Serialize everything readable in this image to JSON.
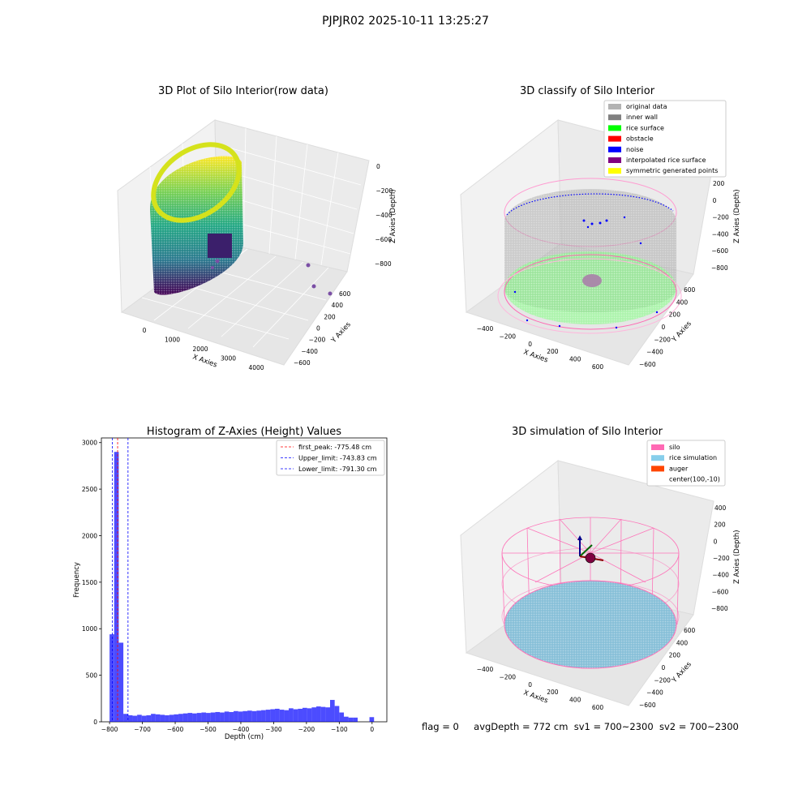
{
  "suptitle": "PJPJR02 2025-10-11 13:25:27",
  "footer": {
    "flag": "flag = 0",
    "avgDepth": "avgDepth = 772 cm",
    "sv1": "sv1 = 700~2300",
    "sv2": "sv2 = 700~2300"
  },
  "panel_raw": {
    "title": "3D Plot of Silo Interior(row data)",
    "xlabel": "X Axies",
    "ylabel": "Y Axies",
    "zlabel": "Z Axies (Depth)",
    "xticks": [
      "0",
      "1000",
      "2000",
      "3000",
      "4000"
    ],
    "yticks": [
      "600",
      "400",
      "200",
      "0",
      "−200",
      "−400",
      "−600"
    ],
    "zticks": [
      "0",
      "−200",
      "−400",
      "−600",
      "−800"
    ]
  },
  "panel_classify": {
    "title": "3D classify of Silo Interior",
    "xlabel": "X Axies",
    "ylabel": "Y Axies",
    "zlabel": "Z Axies (Depth)",
    "xticks": [
      "−400",
      "−200",
      "0",
      "200",
      "400",
      "600"
    ],
    "yticks": [
      "600",
      "400",
      "200",
      "0",
      "−200",
      "−400",
      "−600"
    ],
    "zticks": [
      "200",
      "0",
      "−200",
      "−400",
      "−600",
      "−800"
    ],
    "legend": [
      {
        "label": "original data",
        "color": "#b3b3b3"
      },
      {
        "label": "inner wall",
        "color": "#808080"
      },
      {
        "label": "rice surface",
        "color": "#00ff00"
      },
      {
        "label": "obstacle",
        "color": "#ff0000"
      },
      {
        "label": "noise",
        "color": "#0000ff"
      },
      {
        "label": "interpolated rice surface",
        "color": "#800080"
      },
      {
        "label": "symmetric generated points",
        "color": "#ffff00"
      }
    ]
  },
  "panel_sim": {
    "title": "3D simulation of Silo Interior",
    "xlabel": "X Axies",
    "ylabel": "Y Axies",
    "zlabel": "Z Axies (Depth)",
    "xticks": [
      "−400",
      "−200",
      "0",
      "200",
      "400",
      "600"
    ],
    "yticks": [
      "600",
      "400",
      "200",
      "0",
      "−200",
      "−400",
      "−600"
    ],
    "zticks": [
      "400",
      "200",
      "0",
      "−200",
      "−400",
      "−600",
      "−800"
    ],
    "legend": [
      {
        "label": "silo",
        "color": "#ff69b4"
      },
      {
        "label": "rice simulation",
        "color": "#87ceeb"
      },
      {
        "label": "auger",
        "color": "#ff4500"
      },
      {
        "label": "center(100,-10)",
        "color": ""
      }
    ]
  },
  "chart_data": {
    "type": "bar",
    "title": "Histogram of Z-Axies (Height) Values",
    "xlabel": "Depth (cm)",
    "ylabel": "Frequency",
    "xlim": [
      -825,
      45
    ],
    "ylim": [
      0,
      3050
    ],
    "xticks": [
      -800,
      -700,
      -600,
      -500,
      -400,
      -300,
      -200,
      -100,
      0
    ],
    "yticks": [
      0,
      500,
      1000,
      1500,
      2000,
      2500,
      3000
    ],
    "bar_color": "#0000ff",
    "bin_width": 14,
    "bins": [
      {
        "x0": -800,
        "x1": -786,
        "count": 940
      },
      {
        "x0": -786,
        "x1": -772,
        "count": 2900
      },
      {
        "x0": -772,
        "x1": -758,
        "count": 850
      },
      {
        "x0": -758,
        "x1": -744,
        "count": 85
      },
      {
        "x0": -744,
        "x1": -730,
        "count": 70
      },
      {
        "x0": -730,
        "x1": -716,
        "count": 65
      },
      {
        "x0": -716,
        "x1": -702,
        "count": 75
      },
      {
        "x0": -702,
        "x1": -688,
        "count": 65
      },
      {
        "x0": -688,
        "x1": -674,
        "count": 70
      },
      {
        "x0": -674,
        "x1": -660,
        "count": 85
      },
      {
        "x0": -660,
        "x1": -646,
        "count": 80
      },
      {
        "x0": -646,
        "x1": -632,
        "count": 75
      },
      {
        "x0": -632,
        "x1": -618,
        "count": 70
      },
      {
        "x0": -618,
        "x1": -604,
        "count": 75
      },
      {
        "x0": -604,
        "x1": -590,
        "count": 80
      },
      {
        "x0": -590,
        "x1": -576,
        "count": 85
      },
      {
        "x0": -576,
        "x1": -562,
        "count": 90
      },
      {
        "x0": -562,
        "x1": -548,
        "count": 95
      },
      {
        "x0": -548,
        "x1": -534,
        "count": 90
      },
      {
        "x0": -534,
        "x1": -520,
        "count": 95
      },
      {
        "x0": -520,
        "x1": -506,
        "count": 100
      },
      {
        "x0": -506,
        "x1": -492,
        "count": 95
      },
      {
        "x0": -492,
        "x1": -478,
        "count": 100
      },
      {
        "x0": -478,
        "x1": -464,
        "count": 105
      },
      {
        "x0": -464,
        "x1": -450,
        "count": 100
      },
      {
        "x0": -450,
        "x1": -436,
        "count": 110
      },
      {
        "x0": -436,
        "x1": -422,
        "count": 105
      },
      {
        "x0": -422,
        "x1": -408,
        "count": 115
      },
      {
        "x0": -408,
        "x1": -394,
        "count": 110
      },
      {
        "x0": -394,
        "x1": -380,
        "count": 115
      },
      {
        "x0": -380,
        "x1": -366,
        "count": 120
      },
      {
        "x0": -366,
        "x1": -352,
        "count": 115
      },
      {
        "x0": -352,
        "x1": -338,
        "count": 120
      },
      {
        "x0": -338,
        "x1": -324,
        "count": 125
      },
      {
        "x0": -324,
        "x1": -310,
        "count": 130
      },
      {
        "x0": -310,
        "x1": -296,
        "count": 135
      },
      {
        "x0": -296,
        "x1": -282,
        "count": 140
      },
      {
        "x0": -282,
        "x1": -268,
        "count": 130
      },
      {
        "x0": -268,
        "x1": -254,
        "count": 125
      },
      {
        "x0": -254,
        "x1": -240,
        "count": 145
      },
      {
        "x0": -240,
        "x1": -226,
        "count": 135
      },
      {
        "x0": -226,
        "x1": -212,
        "count": 140
      },
      {
        "x0": -212,
        "x1": -198,
        "count": 150
      },
      {
        "x0": -198,
        "x1": -184,
        "count": 145
      },
      {
        "x0": -184,
        "x1": -170,
        "count": 155
      },
      {
        "x0": -170,
        "x1": -156,
        "count": 165
      },
      {
        "x0": -156,
        "x1": -142,
        "count": 160
      },
      {
        "x0": -142,
        "x1": -128,
        "count": 155
      },
      {
        "x0": -128,
        "x1": -114,
        "count": 235
      },
      {
        "x0": -114,
        "x1": -100,
        "count": 170
      },
      {
        "x0": -100,
        "x1": -86,
        "count": 100
      },
      {
        "x0": -86,
        "x1": -72,
        "count": 55
      },
      {
        "x0": -72,
        "x1": -58,
        "count": 45
      },
      {
        "x0": -58,
        "x1": -44,
        "count": 45
      },
      {
        "x0": -8,
        "x1": 6,
        "count": 50
      }
    ],
    "vlines": [
      {
        "label": "first_peak: -775.48 cm",
        "x": -775.48,
        "color": "#ff0000"
      },
      {
        "label": "Upper_limit: -743.83 cm",
        "x": -743.83,
        "color": "#0000ff"
      },
      {
        "label": "Lower_limit: -791.30 cm",
        "x": -791.3,
        "color": "#0000ff"
      }
    ]
  }
}
